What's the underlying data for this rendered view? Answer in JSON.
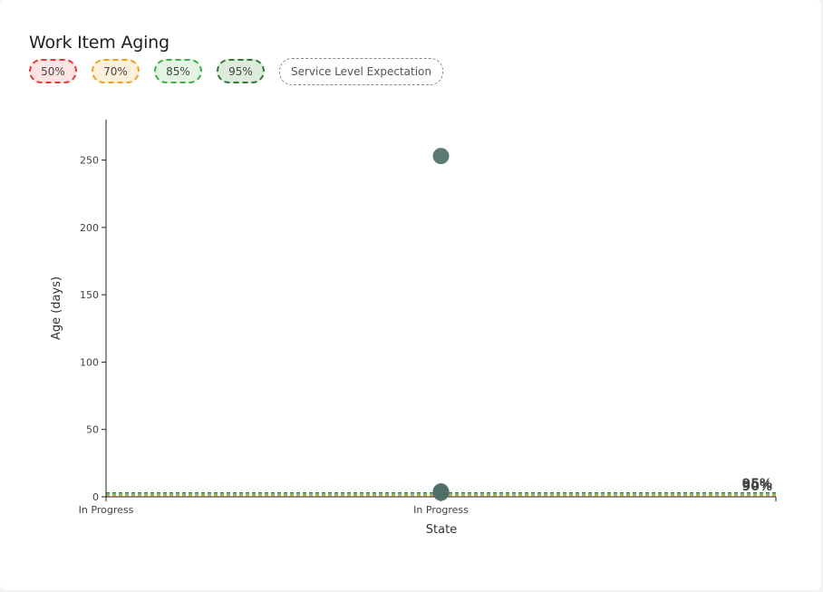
{
  "title": "Work Item Aging",
  "legend": [
    {
      "label": "50%",
      "color": "#e53935"
    },
    {
      "label": "70%",
      "color": "#f0a020"
    },
    {
      "label": "85%",
      "color": "#3fae49"
    },
    {
      "label": "95%",
      "color": "#2e7d32"
    }
  ],
  "sle_label": "Service Level Expectation",
  "chart_data": {
    "type": "scatter",
    "xlabel": "State",
    "ylabel": "Age (days)",
    "categories": [
      "In Progress",
      "In Progress"
    ],
    "ylim": [
      0,
      280
    ],
    "y_ticks": [
      0,
      50,
      100,
      150,
      200,
      250
    ],
    "points": [
      {
        "x": "In Progress",
        "y": 253
      },
      {
        "x": "In Progress",
        "y": 4
      },
      {
        "x": "In Progress",
        "y": 3
      }
    ],
    "point_color": "#4f6e67",
    "percentile_lines": [
      {
        "label": "50%",
        "value": 1,
        "color": "#e53935"
      },
      {
        "label": "70%",
        "value": 1,
        "color": "#f0a020"
      },
      {
        "label": "85%",
        "value": 2,
        "color": "#3fae49"
      },
      {
        "label": "95%",
        "value": 3,
        "color": "#2e7d32"
      }
    ],
    "percentile_labels": [
      "95%",
      "90%"
    ]
  }
}
